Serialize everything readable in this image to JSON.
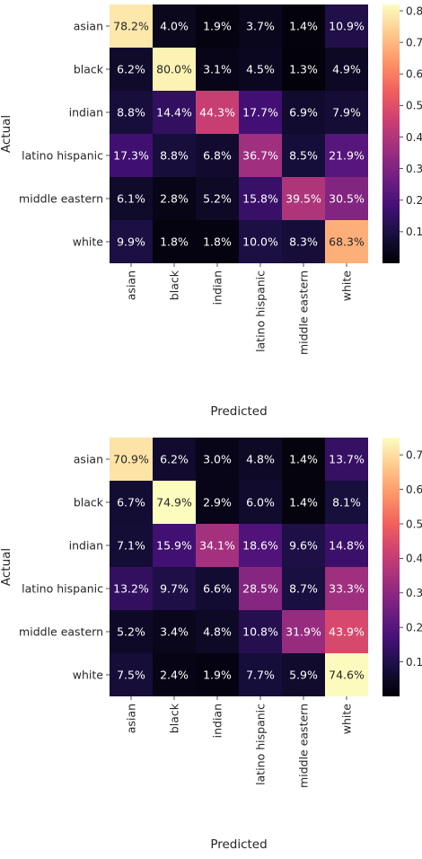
{
  "chart_data": [
    {
      "type": "heatmap",
      "xlabel": "Predicted",
      "ylabel": "Actual",
      "row_labels": [
        "asian",
        "black",
        "indian",
        "latino hispanic",
        "middle eastern",
        "white"
      ],
      "col_labels": [
        "asian",
        "black",
        "indian",
        "latino hispanic",
        "middle eastern",
        "white"
      ],
      "values": [
        [
          78.2,
          4.0,
          1.9,
          3.7,
          1.4,
          10.9
        ],
        [
          6.2,
          80.0,
          3.1,
          4.5,
          1.3,
          4.9
        ],
        [
          8.8,
          14.4,
          44.3,
          17.7,
          6.9,
          7.9
        ],
        [
          17.3,
          8.8,
          6.8,
          36.7,
          8.5,
          21.9
        ],
        [
          6.1,
          2.8,
          5.2,
          15.8,
          39.5,
          30.5
        ],
        [
          9.9,
          1.8,
          1.8,
          10.0,
          8.3,
          68.3
        ]
      ],
      "cell_text": [
        [
          "78.2%",
          "4.0%",
          "1.9%",
          "3.7%",
          "1.4%",
          "10.9%"
        ],
        [
          "6.2%",
          "80.0%",
          "3.1%",
          "4.5%",
          "1.3%",
          "4.9%"
        ],
        [
          "8.8%",
          "14.4%",
          "44.3%",
          "17.7%",
          "6.9%",
          "7.9%"
        ],
        [
          "17.3%",
          "8.8%",
          "6.8%",
          "36.7%",
          "8.5%",
          "21.9%"
        ],
        [
          "6.1%",
          "2.8%",
          "5.2%",
          "15.8%",
          "39.5%",
          "30.5%"
        ],
        [
          "9.9%",
          "1.8%",
          "1.8%",
          "10.0%",
          "8.3%",
          "68.3%"
        ]
      ],
      "colormap": "magma",
      "colorbar": {
        "min": 0.0,
        "max": 0.82,
        "ticks": [
          0.1,
          0.2,
          0.3,
          0.4,
          0.5,
          0.6,
          0.7,
          0.8
        ],
        "tick_labels": [
          "0.1",
          "0.2",
          "0.3",
          "0.4",
          "0.5",
          "0.6",
          "0.7",
          "0.8"
        ]
      }
    },
    {
      "type": "heatmap",
      "xlabel": "Predicted",
      "ylabel": "Actual",
      "row_labels": [
        "asian",
        "black",
        "indian",
        "latino hispanic",
        "middle eastern",
        "white"
      ],
      "col_labels": [
        "asian",
        "black",
        "indian",
        "latino hispanic",
        "middle eastern",
        "white"
      ],
      "values": [
        [
          70.9,
          6.2,
          3.0,
          4.8,
          1.4,
          13.7
        ],
        [
          6.7,
          74.9,
          2.9,
          6.0,
          1.4,
          8.1
        ],
        [
          7.1,
          15.9,
          34.1,
          18.6,
          9.6,
          14.8
        ],
        [
          13.2,
          9.7,
          6.6,
          28.5,
          8.7,
          33.3
        ],
        [
          5.2,
          3.4,
          4.8,
          10.8,
          31.9,
          43.9
        ],
        [
          7.5,
          2.4,
          1.9,
          7.7,
          5.9,
          74.6
        ]
      ],
      "cell_text": [
        [
          "70.9%",
          "6.2%",
          "3.0%",
          "4.8%",
          "1.4%",
          "13.7%"
        ],
        [
          "6.7%",
          "74.9%",
          "2.9%",
          "6.0%",
          "1.4%",
          "8.1%"
        ],
        [
          "7.1%",
          "15.9%",
          "34.1%",
          "18.6%",
          "9.6%",
          "14.8%"
        ],
        [
          "13.2%",
          "9.7%",
          "6.6%",
          "28.5%",
          "8.7%",
          "33.3%"
        ],
        [
          "5.2%",
          "3.4%",
          "4.8%",
          "10.8%",
          "31.9%",
          "43.9%"
        ],
        [
          "7.5%",
          "2.4%",
          "1.9%",
          "7.7%",
          "5.9%",
          "74.6%"
        ]
      ],
      "colormap": "magma",
      "colorbar": {
        "min": 0.0,
        "max": 0.75,
        "ticks": [
          0.1,
          0.2,
          0.3,
          0.4,
          0.5,
          0.6,
          0.7
        ],
        "tick_labels": [
          "0.1",
          "0.2",
          "0.3",
          "0.4",
          "0.5",
          "0.6",
          "0.7"
        ]
      }
    }
  ],
  "colormap_stops": [
    "#000004",
    "#180f3e",
    "#451077",
    "#721f81",
    "#9f2f7f",
    "#cd4071",
    "#f1605d",
    "#fd9567",
    "#fec98d",
    "#fcfdbf"
  ]
}
